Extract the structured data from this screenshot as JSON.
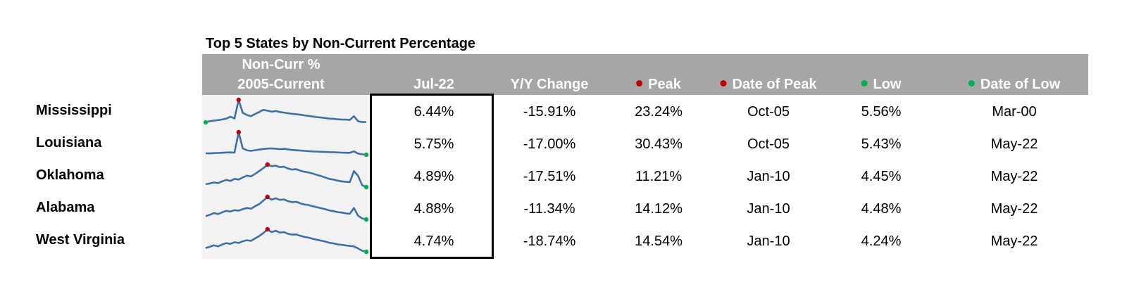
{
  "chart_data": {
    "type": "table",
    "title": "Top 5 States by Non-Current Percentage",
    "columns": [
      {
        "id": "spark",
        "label_line1": "Non-Curr %",
        "label_line2": "2005-Current"
      },
      {
        "id": "jul22",
        "label": "Jul-22"
      },
      {
        "id": "yoy",
        "label": "Y/Y Change"
      },
      {
        "id": "peak",
        "label": "Peak",
        "marker_color": "#c00000"
      },
      {
        "id": "peak_date",
        "label": "Date of Peak",
        "marker_color": "#c00000"
      },
      {
        "id": "low",
        "label": "Low",
        "marker_color": "#00b050"
      },
      {
        "id": "low_date",
        "label": "Date of Low",
        "marker_color": "#00b050"
      }
    ],
    "rows": [
      {
        "state": "Mississippi",
        "jul22": "6.44%",
        "yoy": "-15.91%",
        "peak": "23.24%",
        "peak_date": "Oct-05",
        "low": "5.56%",
        "low_date": "Mar-00",
        "spark": [
          6.2,
          7.1,
          7.6,
          7.9,
          8.4,
          9.0,
          10.5,
          9.2,
          23.24,
          13.5,
          11.8,
          10.9,
          12.6,
          14.1,
          15.6,
          15.1,
          14.3,
          14.8,
          14.1,
          13.6,
          13.1,
          12.7,
          12.4,
          12.0,
          11.5,
          11.1,
          10.6,
          10.2,
          9.9,
          9.5,
          9.1,
          8.9,
          8.6,
          8.4,
          8.3,
          8.0,
          10.9,
          7.1,
          6.4,
          6.44
        ]
      },
      {
        "state": "Louisiana",
        "jul22": "5.75%",
        "yoy": "-17.00%",
        "peak": "30.43%",
        "peak_date": "Oct-05",
        "low": "5.43%",
        "low_date": "May-22",
        "spark": [
          7.4,
          7.2,
          7.5,
          7.7,
          7.9,
          8.2,
          8.3,
          8.1,
          30.43,
          12.8,
          10.7,
          10.0,
          10.8,
          11.4,
          12.1,
          12.5,
          12.8,
          12.4,
          11.9,
          12.2,
          11.6,
          11.0,
          10.6,
          10.3,
          10.0,
          9.7,
          9.4,
          9.2,
          9.0,
          8.8,
          8.6,
          8.5,
          8.3,
          8.1,
          7.9,
          7.8,
          9.5,
          7.0,
          6.1,
          5.75
        ]
      },
      {
        "state": "Oklahoma",
        "jul22": "4.89%",
        "yoy": "-17.51%",
        "peak": "11.21%",
        "peak_date": "Jan-10",
        "low": "4.45%",
        "low_date": "May-22",
        "spark": [
          5.7,
          5.9,
          6.2,
          6.0,
          6.5,
          6.9,
          6.6,
          7.2,
          7.0,
          7.6,
          8.1,
          7.9,
          8.6,
          9.4,
          10.2,
          11.21,
          10.8,
          10.9,
          10.5,
          10.6,
          10.1,
          9.8,
          9.9,
          9.5,
          9.2,
          9.0,
          8.7,
          8.3,
          8.0,
          7.6,
          7.2,
          7.0,
          6.7,
          6.5,
          6.4,
          6.3,
          9.4,
          8.1,
          5.4,
          4.89
        ]
      },
      {
        "state": "Alabama",
        "jul22": "4.88%",
        "yoy": "-11.34%",
        "peak": "14.12%",
        "peak_date": "Jan-10",
        "low": "4.48%",
        "low_date": "May-22",
        "spark": [
          6.2,
          6.8,
          7.5,
          7.1,
          7.8,
          8.4,
          8.1,
          8.7,
          8.5,
          9.1,
          9.6,
          9.3,
          10.3,
          11.2,
          12.6,
          14.12,
          13.0,
          13.6,
          12.9,
          13.1,
          12.4,
          12.0,
          12.1,
          11.5,
          11.0,
          10.8,
          10.3,
          9.9,
          9.5,
          9.1,
          8.6,
          8.3,
          7.9,
          7.7,
          7.4,
          7.2,
          9.6,
          6.4,
          5.3,
          4.88
        ]
      },
      {
        "state": "West Virginia",
        "jul22": "4.74%",
        "yoy": "-18.74%",
        "peak": "14.54%",
        "peak_date": "Jan-10",
        "low": "4.24%",
        "low_date": "May-22",
        "spark": [
          6.4,
          6.9,
          7.6,
          7.1,
          7.9,
          8.5,
          8.2,
          8.9,
          8.6,
          9.3,
          9.8,
          9.5,
          10.6,
          11.6,
          12.9,
          14.54,
          13.3,
          13.9,
          13.1,
          13.3,
          12.6,
          12.2,
          12.3,
          11.7,
          11.2,
          10.9,
          10.4,
          10.0,
          9.6,
          9.2,
          8.7,
          8.4,
          8.0,
          7.8,
          7.5,
          7.3,
          7.1,
          6.2,
          5.2,
          4.74
        ]
      }
    ],
    "colors": {
      "header_bg": "#a6a6a6",
      "spark_line": "#3f6fa8",
      "peak_marker": "#c00000",
      "low_marker": "#00b050",
      "spark_bg": "#f2f2f2"
    }
  }
}
